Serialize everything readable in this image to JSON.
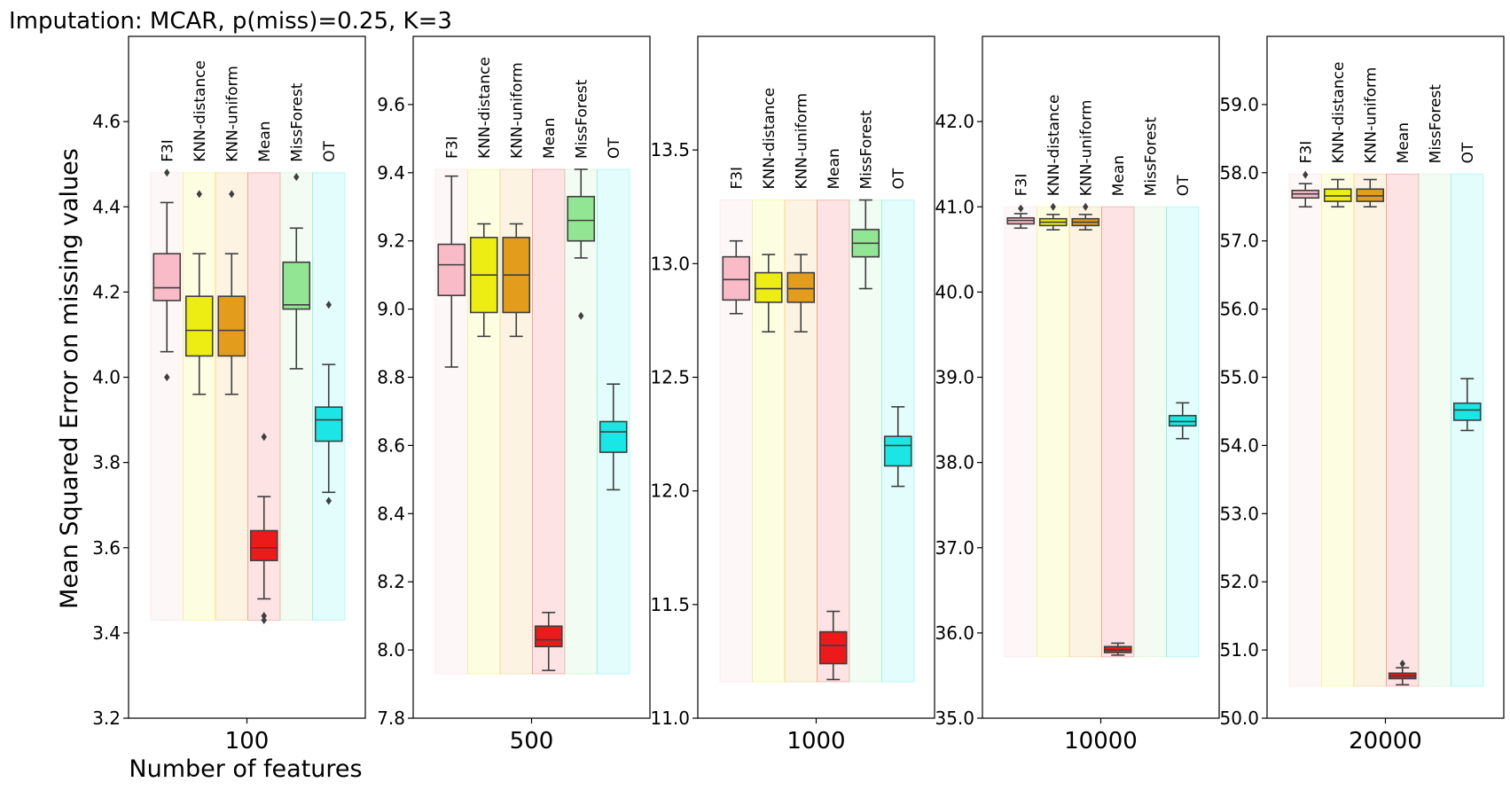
{
  "suptitle": "Imputation: MCAR, p(miss)=0.25, K=3",
  "colors": {
    "F3I": "#f8bbc7",
    "KNN-distance": "#eded14",
    "KNN-uniform": "#e39c1c",
    "Mean": "#ec1a1a",
    "MissForest": "#92e592",
    "OT": "#1ce5e5"
  },
  "chart_data": {
    "type": "box",
    "ylabel": "Mean Squared Error on missing values",
    "xlabel": "Number of features",
    "categories": [
      "F3I",
      "KNN-distance",
      "KNN-uniform",
      "Mean",
      "MissForest",
      "OT"
    ],
    "panels": [
      {
        "x_tick": "100",
        "ylim": [
          3.2,
          4.8
        ],
        "yticks": [
          "3.2",
          "3.4",
          "3.6",
          "3.8",
          "4.0",
          "4.2",
          "4.4",
          "4.6"
        ],
        "band": [
          3.43,
          4.48
        ],
        "boxes": [
          {
            "method": "F3I",
            "q1": 4.18,
            "median": 4.21,
            "q3": 4.29,
            "whislo": 4.06,
            "whishi": 4.41,
            "fliers": [
              4.0,
              4.48
            ]
          },
          {
            "method": "KNN-distance",
            "q1": 4.05,
            "median": 4.11,
            "q3": 4.19,
            "whislo": 3.96,
            "whishi": 4.29,
            "fliers": [
              4.43
            ]
          },
          {
            "method": "KNN-uniform",
            "q1": 4.05,
            "median": 4.11,
            "q3": 4.19,
            "whislo": 3.96,
            "whishi": 4.29,
            "fliers": [
              4.43
            ]
          },
          {
            "method": "Mean",
            "q1": 3.57,
            "median": 3.6,
            "q3": 3.64,
            "whislo": 3.48,
            "whishi": 3.72,
            "fliers": [
              3.86,
              3.43,
              3.44
            ]
          },
          {
            "method": "MissForest",
            "q1": 4.16,
            "median": 4.17,
            "q3": 4.27,
            "whislo": 4.02,
            "whishi": 4.35,
            "fliers": [
              4.47
            ]
          },
          {
            "method": "OT",
            "q1": 3.85,
            "median": 3.9,
            "q3": 3.93,
            "whislo": 3.73,
            "whishi": 4.03,
            "fliers": [
              4.17,
              3.71
            ]
          }
        ]
      },
      {
        "x_tick": "500",
        "ylim": [
          7.8,
          9.8
        ],
        "yticks": [
          "7.8",
          "8.0",
          "8.2",
          "8.4",
          "8.6",
          "8.8",
          "9.0",
          "9.2",
          "9.4",
          "9.6"
        ],
        "band": [
          7.93,
          9.41
        ],
        "boxes": [
          {
            "method": "F3I",
            "q1": 9.04,
            "median": 9.13,
            "q3": 9.19,
            "whislo": 8.83,
            "whishi": 9.39,
            "fliers": []
          },
          {
            "method": "KNN-distance",
            "q1": 8.99,
            "median": 9.1,
            "q3": 9.21,
            "whislo": 8.92,
            "whishi": 9.25,
            "fliers": []
          },
          {
            "method": "KNN-uniform",
            "q1": 8.99,
            "median": 9.1,
            "q3": 9.21,
            "whislo": 8.92,
            "whishi": 9.25,
            "fliers": []
          },
          {
            "method": "Mean",
            "q1": 8.01,
            "median": 8.03,
            "q3": 8.07,
            "whislo": 7.94,
            "whishi": 8.11,
            "fliers": []
          },
          {
            "method": "MissForest",
            "q1": 9.2,
            "median": 9.26,
            "q3": 9.33,
            "whislo": 9.15,
            "whishi": 9.41,
            "fliers": [
              8.98
            ]
          },
          {
            "method": "OT",
            "q1": 8.58,
            "median": 8.64,
            "q3": 8.67,
            "whislo": 8.47,
            "whishi": 8.78,
            "fliers": []
          }
        ]
      },
      {
        "x_tick": "1000",
        "ylim": [
          11.0,
          14.0
        ],
        "yticks": [
          "11.0",
          "11.5",
          "12.0",
          "12.5",
          "13.0",
          "13.5"
        ],
        "band": [
          11.16,
          13.28
        ],
        "boxes": [
          {
            "method": "F3I",
            "q1": 12.84,
            "median": 12.93,
            "q3": 13.03,
            "whislo": 12.78,
            "whishi": 13.1,
            "fliers": []
          },
          {
            "method": "KNN-distance",
            "q1": 12.83,
            "median": 12.89,
            "q3": 12.96,
            "whislo": 12.7,
            "whishi": 13.04,
            "fliers": []
          },
          {
            "method": "KNN-uniform",
            "q1": 12.83,
            "median": 12.89,
            "q3": 12.96,
            "whislo": 12.7,
            "whishi": 13.04,
            "fliers": []
          },
          {
            "method": "Mean",
            "q1": 11.24,
            "median": 11.32,
            "q3": 11.38,
            "whislo": 11.17,
            "whishi": 11.47,
            "fliers": []
          },
          {
            "method": "MissForest",
            "q1": 13.03,
            "median": 13.09,
            "q3": 13.15,
            "whislo": 12.89,
            "whishi": 13.28,
            "fliers": []
          },
          {
            "method": "OT",
            "q1": 12.11,
            "median": 12.2,
            "q3": 12.24,
            "whislo": 12.02,
            "whishi": 12.37,
            "fliers": []
          }
        ]
      },
      {
        "x_tick": "10000",
        "ylim": [
          35.0,
          43.0
        ],
        "yticks": [
          "35.0",
          "36.0",
          "37.0",
          "38.0",
          "39.0",
          "40.0",
          "41.0",
          "42.0"
        ],
        "band": [
          35.72,
          41.0
        ],
        "boxes": [
          {
            "method": "F3I",
            "q1": 40.8,
            "median": 40.84,
            "q3": 40.87,
            "whislo": 40.75,
            "whishi": 40.92,
            "fliers": [
              40.98
            ]
          },
          {
            "method": "KNN-distance",
            "q1": 40.78,
            "median": 40.82,
            "q3": 40.86,
            "whislo": 40.73,
            "whishi": 40.91,
            "fliers": [
              41.0
            ]
          },
          {
            "method": "KNN-uniform",
            "q1": 40.78,
            "median": 40.82,
            "q3": 40.86,
            "whislo": 40.73,
            "whishi": 40.91,
            "fliers": [
              41.0
            ]
          },
          {
            "method": "Mean",
            "q1": 35.77,
            "median": 35.8,
            "q3": 35.84,
            "whislo": 35.74,
            "whishi": 35.88,
            "fliers": []
          },
          {
            "method": "OT",
            "q1": 38.43,
            "median": 38.48,
            "q3": 38.55,
            "whislo": 38.28,
            "whishi": 38.7,
            "fliers": []
          }
        ]
      },
      {
        "x_tick": "20000",
        "ylim": [
          50.0,
          60.0
        ],
        "yticks": [
          "50.0",
          "51.0",
          "52.0",
          "53.0",
          "54.0",
          "55.0",
          "56.0",
          "57.0",
          "58.0",
          "59.0"
        ],
        "band": [
          50.47,
          57.98
        ],
        "boxes": [
          {
            "method": "F3I",
            "q1": 57.63,
            "median": 57.69,
            "q3": 57.74,
            "whislo": 57.5,
            "whishi": 57.84,
            "fliers": [
              57.97
            ]
          },
          {
            "method": "KNN-distance",
            "q1": 57.58,
            "median": 57.66,
            "q3": 57.76,
            "whislo": 57.5,
            "whishi": 57.9,
            "fliers": []
          },
          {
            "method": "KNN-uniform",
            "q1": 57.58,
            "median": 57.66,
            "q3": 57.76,
            "whislo": 57.5,
            "whishi": 57.9,
            "fliers": []
          },
          {
            "method": "Mean",
            "q1": 50.58,
            "median": 50.62,
            "q3": 50.66,
            "whislo": 50.49,
            "whishi": 50.74,
            "fliers": [
              50.8
            ]
          },
          {
            "method": "OT",
            "q1": 54.37,
            "median": 54.52,
            "q3": 54.62,
            "whislo": 54.22,
            "whishi": 54.98,
            "fliers": []
          }
        ]
      }
    ]
  }
}
